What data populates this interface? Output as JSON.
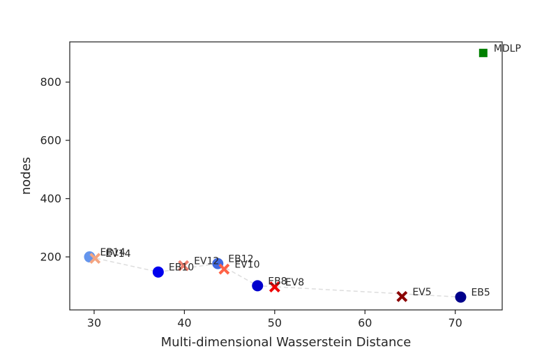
{
  "chart_data": {
    "type": "scatter",
    "title": "",
    "xlabel": "Multi-dimensional Wasserstein Distance",
    "ylabel": "nodes",
    "xlim": [
      27.3,
      75.2
    ],
    "ylim": [
      18,
      938
    ],
    "xticks": [
      30,
      40,
      50,
      60,
      70
    ],
    "yticks": [
      200,
      400,
      600,
      800
    ],
    "grid": false,
    "frontier": [
      [
        29.5,
        200
      ],
      [
        37.1,
        148
      ],
      [
        43.7,
        177
      ],
      [
        48.1,
        101
      ],
      [
        70.6,
        62
      ]
    ],
    "frontier_color": "#dddddd",
    "points": [
      {
        "label": "EB14",
        "x": 29.5,
        "y": 200,
        "marker": "circle",
        "color": "#6495ed"
      },
      {
        "label": "EV14",
        "x": 30.1,
        "y": 195,
        "marker": "x",
        "color": "#f4a582"
      },
      {
        "label": "EB10",
        "x": 37.1,
        "y": 148,
        "marker": "circle",
        "color": "#0000ee"
      },
      {
        "label": "EV12",
        "x": 39.9,
        "y": 170,
        "marker": "x",
        "color": "#f08070"
      },
      {
        "label": "EB12",
        "x": 43.7,
        "y": 177,
        "marker": "circle",
        "color": "#4169e1"
      },
      {
        "label": "EV10",
        "x": 44.4,
        "y": 158,
        "marker": "x",
        "color": "#ff6347"
      },
      {
        "label": "EB8",
        "x": 48.1,
        "y": 101,
        "marker": "circle",
        "color": "#0000cd"
      },
      {
        "label": "EV8",
        "x": 50.0,
        "y": 97,
        "marker": "x",
        "color": "#ee0000"
      },
      {
        "label": "EV5",
        "x": 64.1,
        "y": 64,
        "marker": "x",
        "color": "#8b0000"
      },
      {
        "label": "EB5",
        "x": 70.6,
        "y": 62,
        "marker": "circle",
        "color": "#00008b"
      },
      {
        "label": "MDLP",
        "x": 73.1,
        "y": 900,
        "marker": "square",
        "color": "#008000"
      }
    ]
  }
}
